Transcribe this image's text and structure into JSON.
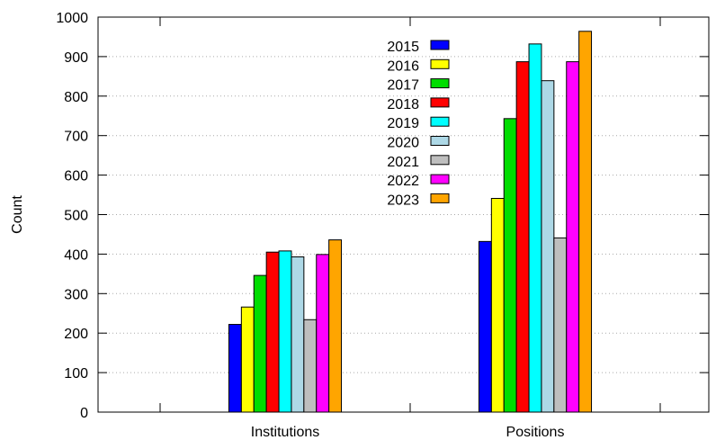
{
  "chart_data": {
    "type": "bar",
    "title": "",
    "xlabel": "",
    "ylabel": "Count",
    "ylim": [
      0,
      1000
    ],
    "yticks": [
      0,
      100,
      200,
      300,
      400,
      500,
      600,
      700,
      800,
      900,
      1000
    ],
    "grid": "dotted horizontal",
    "legend": "top-center",
    "categories": [
      "Institutions",
      "Positions"
    ],
    "series": [
      {
        "name": "2015",
        "color": "#0000ff",
        "values": [
          222,
          432
        ]
      },
      {
        "name": "2016",
        "color": "#ffff00",
        "values": [
          266,
          541
        ]
      },
      {
        "name": "2017",
        "color": "#00dd00",
        "values": [
          346,
          743
        ]
      },
      {
        "name": "2018",
        "color": "#ff0000",
        "values": [
          405,
          887
        ]
      },
      {
        "name": "2019",
        "color": "#00ffff",
        "values": [
          408,
          932
        ]
      },
      {
        "name": "2020",
        "color": "#add8e6",
        "values": [
          393,
          839
        ]
      },
      {
        "name": "2021",
        "color": "#bebebe",
        "values": [
          234,
          441
        ]
      },
      {
        "name": "2022",
        "color": "#ff00ff",
        "values": [
          399,
          887
        ]
      },
      {
        "name": "2023",
        "color": "#ffa500",
        "values": [
          436,
          964
        ]
      }
    ]
  }
}
